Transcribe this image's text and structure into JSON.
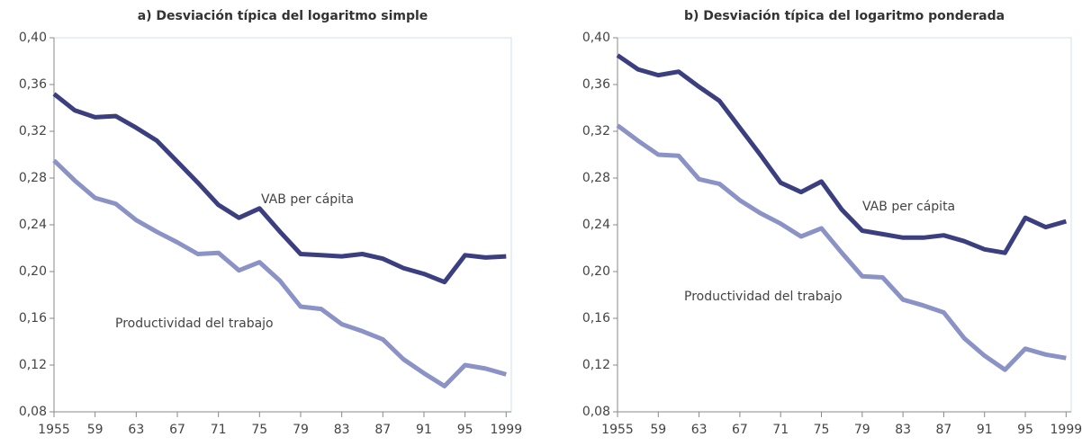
{
  "chart_data": [
    {
      "type": "line",
      "title": "a) Desviación típica del logaritmo simple",
      "x": [
        1955,
        1957,
        1959,
        1961,
        1963,
        1965,
        1967,
        1969,
        1971,
        1973,
        1975,
        1977,
        1979,
        1981,
        1983,
        1985,
        1987,
        1989,
        1991,
        1993,
        1995,
        1997,
        1999
      ],
      "series": [
        {
          "name": "VAB per cápita",
          "color": "#3b3f80",
          "values": [
            0.352,
            0.338,
            0.332,
            0.333,
            0.323,
            0.312,
            0.294,
            0.276,
            0.257,
            0.246,
            0.254,
            0.234,
            0.215,
            0.214,
            0.213,
            0.215,
            0.211,
            0.203,
            0.198,
            0.191,
            0.214,
            0.212,
            0.213
          ]
        },
        {
          "name": "Productividad del trabajo",
          "color": "#8b93c6",
          "values": [
            0.295,
            0.278,
            0.263,
            0.258,
            0.244,
            0.234,
            0.225,
            0.215,
            0.216,
            0.201,
            0.208,
            0.192,
            0.17,
            0.168,
            0.155,
            0.149,
            0.142,
            0.125,
            0.113,
            0.102,
            0.12,
            0.117,
            0.112
          ]
        }
      ],
      "xlim": [
        1955,
        1999.5
      ],
      "xticks": [
        1955,
        {
          "value": 1959,
          "label": "59"
        },
        {
          "value": 1963,
          "label": "63"
        },
        {
          "value": 1967,
          "label": "67"
        },
        {
          "value": 1971,
          "label": "71"
        },
        {
          "value": 1975,
          "label": "75"
        },
        {
          "value": 1979,
          "label": "79"
        },
        {
          "value": 1983,
          "label": "83"
        },
        {
          "value": 1987,
          "label": "87"
        },
        {
          "value": 1991,
          "label": "91"
        },
        {
          "value": 1995,
          "label": "95"
        },
        1999
      ],
      "ylim": [
        0.08,
        0.4
      ],
      "yticks": [
        {
          "value": 0.08,
          "label": "0,08"
        },
        {
          "value": 0.12,
          "label": "0,12"
        },
        {
          "value": 0.16,
          "label": "0,16"
        },
        {
          "value": 0.2,
          "label": "0,20"
        },
        {
          "value": 0.24,
          "label": "0,24"
        },
        {
          "value": 0.28,
          "label": "0,28"
        },
        {
          "value": 0.32,
          "label": "0,32"
        },
        {
          "value": 0.36,
          "label": "0,36"
        },
        {
          "value": 0.4,
          "label": "0,40"
        }
      ]
    },
    {
      "type": "line",
      "title": "b) Desviación típica del logaritmo ponderada",
      "x": [
        1955,
        1957,
        1959,
        1961,
        1963,
        1965,
        1967,
        1969,
        1971,
        1973,
        1975,
        1977,
        1979,
        1981,
        1983,
        1985,
        1987,
        1989,
        1991,
        1993,
        1995,
        1997,
        1999
      ],
      "series": [
        {
          "name": "VAB per cápita",
          "color": "#3b3f80",
          "values": [
            0.385,
            0.373,
            0.368,
            0.371,
            0.358,
            0.346,
            0.323,
            0.3,
            0.276,
            0.268,
            0.277,
            0.253,
            0.235,
            0.232,
            0.229,
            0.229,
            0.231,
            0.226,
            0.219,
            0.216,
            0.246,
            0.238,
            0.243
          ]
        },
        {
          "name": "Productividad del trabajo",
          "color": "#8b93c6",
          "values": [
            0.325,
            0.312,
            0.3,
            0.299,
            0.279,
            0.275,
            0.261,
            0.25,
            0.241,
            0.23,
            0.237,
            0.216,
            0.196,
            0.195,
            0.176,
            0.171,
            0.165,
            0.143,
            0.128,
            0.116,
            0.134,
            0.129,
            0.126
          ]
        }
      ],
      "xlim": [
        1955,
        1999.5
      ],
      "xticks": [
        1955,
        {
          "value": 1959,
          "label": "59"
        },
        {
          "value": 1963,
          "label": "63"
        },
        {
          "value": 1967,
          "label": "67"
        },
        {
          "value": 1971,
          "label": "71"
        },
        {
          "value": 1975,
          "label": "75"
        },
        {
          "value": 1979,
          "label": "79"
        },
        {
          "value": 1983,
          "label": "83"
        },
        {
          "value": 1987,
          "label": "87"
        },
        {
          "value": 1991,
          "label": "91"
        },
        {
          "value": 1995,
          "label": "95"
        },
        1999
      ],
      "ylim": [
        0.08,
        0.4
      ],
      "yticks": [
        {
          "value": 0.08,
          "label": "0,08"
        },
        {
          "value": 0.12,
          "label": "0,12"
        },
        {
          "value": 0.16,
          "label": "0,16"
        },
        {
          "value": 0.2,
          "label": "0,20"
        },
        {
          "value": 0.24,
          "label": "0,24"
        },
        {
          "value": 0.28,
          "label": "0,28"
        },
        {
          "value": 0.32,
          "label": "0,32"
        },
        {
          "value": 0.36,
          "label": "0,36"
        },
        {
          "value": 0.4,
          "label": "0,40"
        }
      ]
    }
  ]
}
